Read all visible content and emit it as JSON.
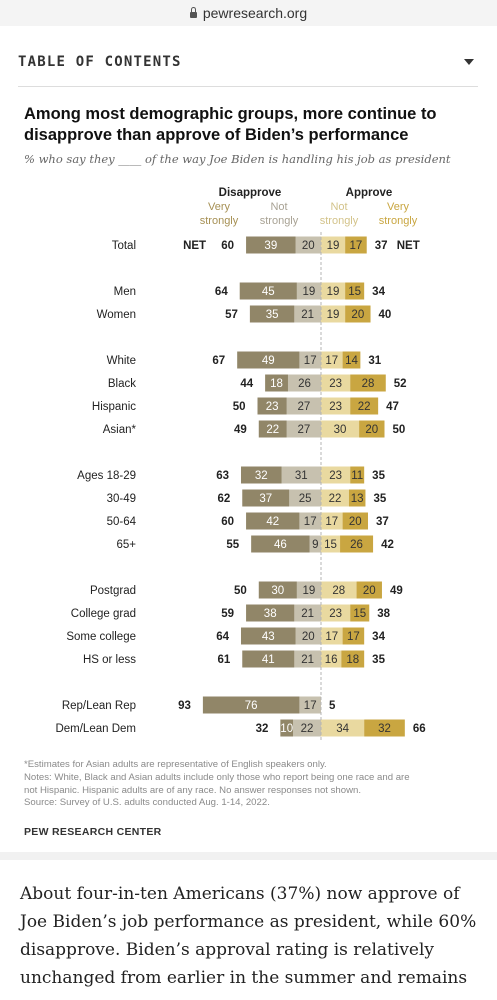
{
  "browser": {
    "domain": "pewresearch.org"
  },
  "toc": {
    "title": "TABLE OF CONTENTS"
  },
  "chart_data": {
    "type": "bar",
    "title": "Among most demographic groups, more continue to disapprove than approve of Biden’s performance",
    "subtitle": "% who say they ____ of the way Joe Biden is handling his job as president",
    "headers": {
      "disapprove": "Disapprove",
      "approve": "Approve",
      "very_strongly_top": "Very",
      "very_strongly_bottom": "strongly",
      "not_strongly_top": "Not",
      "not_strongly_bottom": "strongly",
      "net": "NET"
    },
    "series": [
      {
        "name": "Disapprove Very strongly",
        "color": "#918668"
      },
      {
        "name": "Disapprove Not strongly",
        "color": "#c7c1af"
      },
      {
        "name": "Approve Not strongly",
        "color": "#e9d9a0"
      },
      {
        "name": "Approve Very strongly",
        "color": "#c9a641"
      }
    ],
    "rows": [
      {
        "label": "Total",
        "dis_net": 60,
        "dis_very": 39,
        "dis_not": 20,
        "app_not": 19,
        "app_very": 17,
        "app_net": 37,
        "net_labels": true
      },
      {
        "label": "Men",
        "dis_net": 64,
        "dis_very": 45,
        "dis_not": 19,
        "app_not": 19,
        "app_very": 15,
        "app_net": 34,
        "group_gap": true
      },
      {
        "label": "Women",
        "dis_net": 57,
        "dis_very": 35,
        "dis_not": 21,
        "app_not": 19,
        "app_very": 20,
        "app_net": 40
      },
      {
        "label": "White",
        "dis_net": 67,
        "dis_very": 49,
        "dis_not": 17,
        "app_not": 17,
        "app_very": 14,
        "app_net": 31,
        "group_gap": true
      },
      {
        "label": "Black",
        "dis_net": 44,
        "dis_very": 18,
        "dis_not": 26,
        "app_not": 23,
        "app_very": 28,
        "app_net": 52
      },
      {
        "label": "Hispanic",
        "dis_net": 50,
        "dis_very": 23,
        "dis_not": 27,
        "app_not": 23,
        "app_very": 22,
        "app_net": 47
      },
      {
        "label": "Asian*",
        "dis_net": 49,
        "dis_very": 22,
        "dis_not": 27,
        "app_not": 30,
        "app_very": 20,
        "app_net": 50
      },
      {
        "label": "Ages 18-29",
        "dis_net": 63,
        "dis_very": 32,
        "dis_not": 31,
        "app_not": 23,
        "app_very": 11,
        "app_net": 35,
        "group_gap": true
      },
      {
        "label": "30-49",
        "dis_net": 62,
        "dis_very": 37,
        "dis_not": 25,
        "app_not": 22,
        "app_very": 13,
        "app_net": 35
      },
      {
        "label": "50-64",
        "dis_net": 60,
        "dis_very": 42,
        "dis_not": 17,
        "app_not": 17,
        "app_very": 20,
        "app_net": 37
      },
      {
        "label": "65+",
        "dis_net": 55,
        "dis_very": 46,
        "dis_not": 9,
        "app_not": 15,
        "app_very": 26,
        "app_net": 42
      },
      {
        "label": "Postgrad",
        "dis_net": 50,
        "dis_very": 30,
        "dis_not": 19,
        "app_not": 28,
        "app_very": 20,
        "app_net": 49,
        "group_gap": true
      },
      {
        "label": "College grad",
        "dis_net": 59,
        "dis_very": 38,
        "dis_not": 21,
        "app_not": 23,
        "app_very": 15,
        "app_net": 38
      },
      {
        "label": "Some college",
        "dis_net": 64,
        "dis_very": 43,
        "dis_not": 20,
        "app_not": 17,
        "app_very": 17,
        "app_net": 34
      },
      {
        "label": "HS or less",
        "dis_net": 61,
        "dis_very": 41,
        "dis_not": 21,
        "app_not": 16,
        "app_very": 18,
        "app_net": 35
      },
      {
        "label": "Rep/Lean Rep",
        "dis_net": 93,
        "dis_very": 76,
        "dis_not": 17,
        "app_not": null,
        "app_very": null,
        "app_net": 5,
        "group_gap": true
      },
      {
        "label": "Dem/Lean Dem",
        "dis_net": 32,
        "dis_very": 10,
        "dis_not": 22,
        "app_not": 34,
        "app_very": 32,
        "app_net": 66
      }
    ]
  },
  "notes": {
    "asterisk": "*Estimates for Asian adults are representative of English speakers only.",
    "notes_line1": "Notes: White, Black and Asian adults include only those who report being one race and are",
    "notes_line2": "not Hispanic. Hispanic adults are of any race. No answer responses not shown.",
    "source": "Source: Survey of U.S. adults conducted Aug. 1-14, 2022.",
    "org": "PEW RESEARCH CENTER"
  },
  "article": {
    "text": "About four-in-ten Americans (37%) now approve of Joe Biden’s job performance as president, while 60% disapprove. Biden’s approval rating is relatively unchanged from earlier in the summer and remains"
  }
}
